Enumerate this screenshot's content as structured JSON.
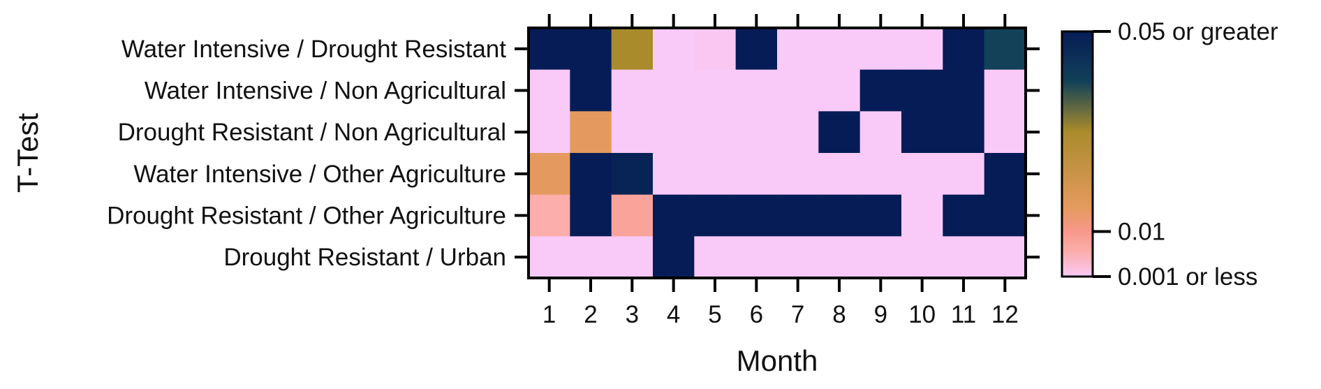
{
  "chart_data": {
    "type": "heatmap",
    "xlabel": "Month",
    "ylabel": "T-Test",
    "x": [
      1,
      2,
      3,
      4,
      5,
      6,
      7,
      8,
      9,
      10,
      11,
      12
    ],
    "rows": [
      "Water Intensive / Drought Resistant",
      "Water Intensive / Non Agricultural",
      "Drought Resistant / Non Agricultural",
      "Water Intensive / Other Agriculture",
      "Drought Resistant / Other Agriculture",
      "Drought Resistant / Urban"
    ],
    "values": [
      [
        0.05,
        0.05,
        0.03,
        0.001,
        0.0013,
        0.05,
        0.001,
        0.001,
        0.001,
        0.001,
        0.05,
        0.04
      ],
      [
        0.001,
        0.05,
        0.001,
        0.001,
        0.001,
        0.001,
        0.001,
        0.001,
        0.05,
        0.05,
        0.05,
        0.001
      ],
      [
        0.001,
        0.015,
        0.001,
        0.001,
        0.001,
        0.001,
        0.001,
        0.05,
        0.001,
        0.05,
        0.05,
        0.001
      ],
      [
        0.015,
        0.05,
        0.048,
        0.001,
        0.001,
        0.001,
        0.001,
        0.001,
        0.001,
        0.001,
        0.001,
        0.05
      ],
      [
        0.006,
        0.05,
        0.008,
        0.05,
        0.05,
        0.05,
        0.05,
        0.05,
        0.05,
        0.001,
        0.05,
        0.05
      ],
      [
        0.001,
        0.001,
        0.001,
        0.05,
        0.001,
        0.001,
        0.001,
        0.001,
        0.001,
        0.001,
        0.001,
        0.001
      ]
    ],
    "colorbar": {
      "range": [
        0.001,
        0.05
      ],
      "ticks": [
        {
          "value": 0.05,
          "label": "0.05 or greater"
        },
        {
          "value": 0.01,
          "label": "0.01"
        },
        {
          "value": 0.001,
          "label": "0.001 or less"
        }
      ],
      "stops": [
        {
          "value": 0.001,
          "color": "#f9c9f7"
        },
        {
          "value": 0.006,
          "color": "#fbaeab"
        },
        {
          "value": 0.01,
          "color": "#f7988a"
        },
        {
          "value": 0.015,
          "color": "#e49a5e"
        },
        {
          "value": 0.03,
          "color": "#a98b2c"
        },
        {
          "value": 0.04,
          "color": "#124158"
        },
        {
          "value": 0.05,
          "color": "#061c56"
        }
      ]
    }
  }
}
